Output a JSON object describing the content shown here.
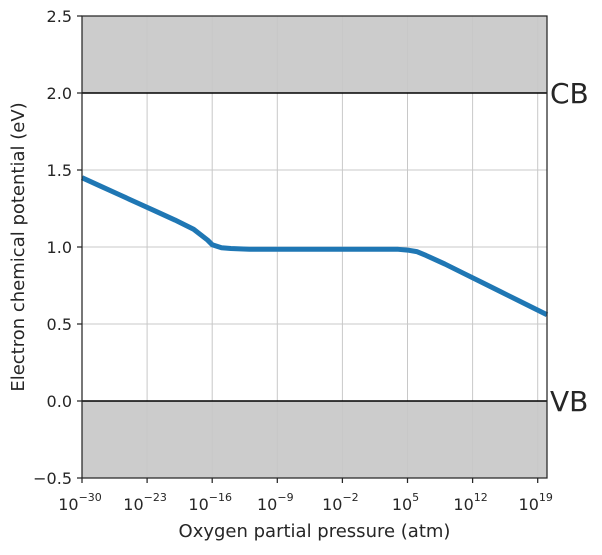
{
  "chart_data": {
    "type": "line",
    "title": "",
    "xlabel": "Oxygen partial pressure (atm)",
    "ylabel": "Electron chemical potential (eV)",
    "x_scale": "log",
    "xlim_log10": [
      -30,
      20
    ],
    "ylim": [
      -0.5,
      2.5
    ],
    "xticks": [
      {
        "base": "10",
        "exp": "−30",
        "log10": -30
      },
      {
        "base": "10",
        "exp": "−23",
        "log10": -23
      },
      {
        "base": "10",
        "exp": "−16",
        "log10": -16
      },
      {
        "base": "10",
        "exp": "−9",
        "log10": -9
      },
      {
        "base": "10",
        "exp": "−2",
        "log10": -2
      },
      {
        "base": "10",
        "exp": "5",
        "log10": 5
      },
      {
        "base": "10",
        "exp": "12",
        "log10": 12
      },
      {
        "base": "10",
        "exp": "19",
        "log10": 19
      }
    ],
    "yticks": [
      {
        "label": "−0.5",
        "value": -0.5
      },
      {
        "label": "0.0",
        "value": 0.0
      },
      {
        "label": "0.5",
        "value": 0.5
      },
      {
        "label": "1.0",
        "value": 1.0
      },
      {
        "label": "1.5",
        "value": 1.5
      },
      {
        "label": "2.0",
        "value": 2.0
      },
      {
        "label": "2.5",
        "value": 2.5
      }
    ],
    "grid": true,
    "bands": [
      {
        "label": "CB",
        "value": 2.0,
        "shade_to": 2.5
      },
      {
        "label": "VB",
        "value": 0.0,
        "shade_to": -0.5
      }
    ],
    "series": [
      {
        "color": "#1f77b4",
        "x_log10": [
          -30,
          -28,
          -26,
          -24,
          -22,
          -20,
          -18,
          -16.5,
          -16,
          -15,
          -14,
          -12,
          -9,
          -5,
          -2,
          0,
          2,
          4,
          5,
          6,
          7,
          9,
          11,
          13,
          15,
          17,
          19,
          20
        ],
        "y": [
          1.45,
          1.395,
          1.34,
          1.285,
          1.23,
          1.175,
          1.115,
          1.045,
          1.015,
          0.995,
          0.99,
          0.985,
          0.985,
          0.985,
          0.985,
          0.985,
          0.985,
          0.985,
          0.98,
          0.97,
          0.945,
          0.89,
          0.83,
          0.77,
          0.71,
          0.65,
          0.59,
          0.56
        ]
      }
    ],
    "colors": {
      "band_fill": "#cccccc",
      "grid": "#c8c8c8",
      "spine": "#262626",
      "band_line": "#000000"
    }
  }
}
